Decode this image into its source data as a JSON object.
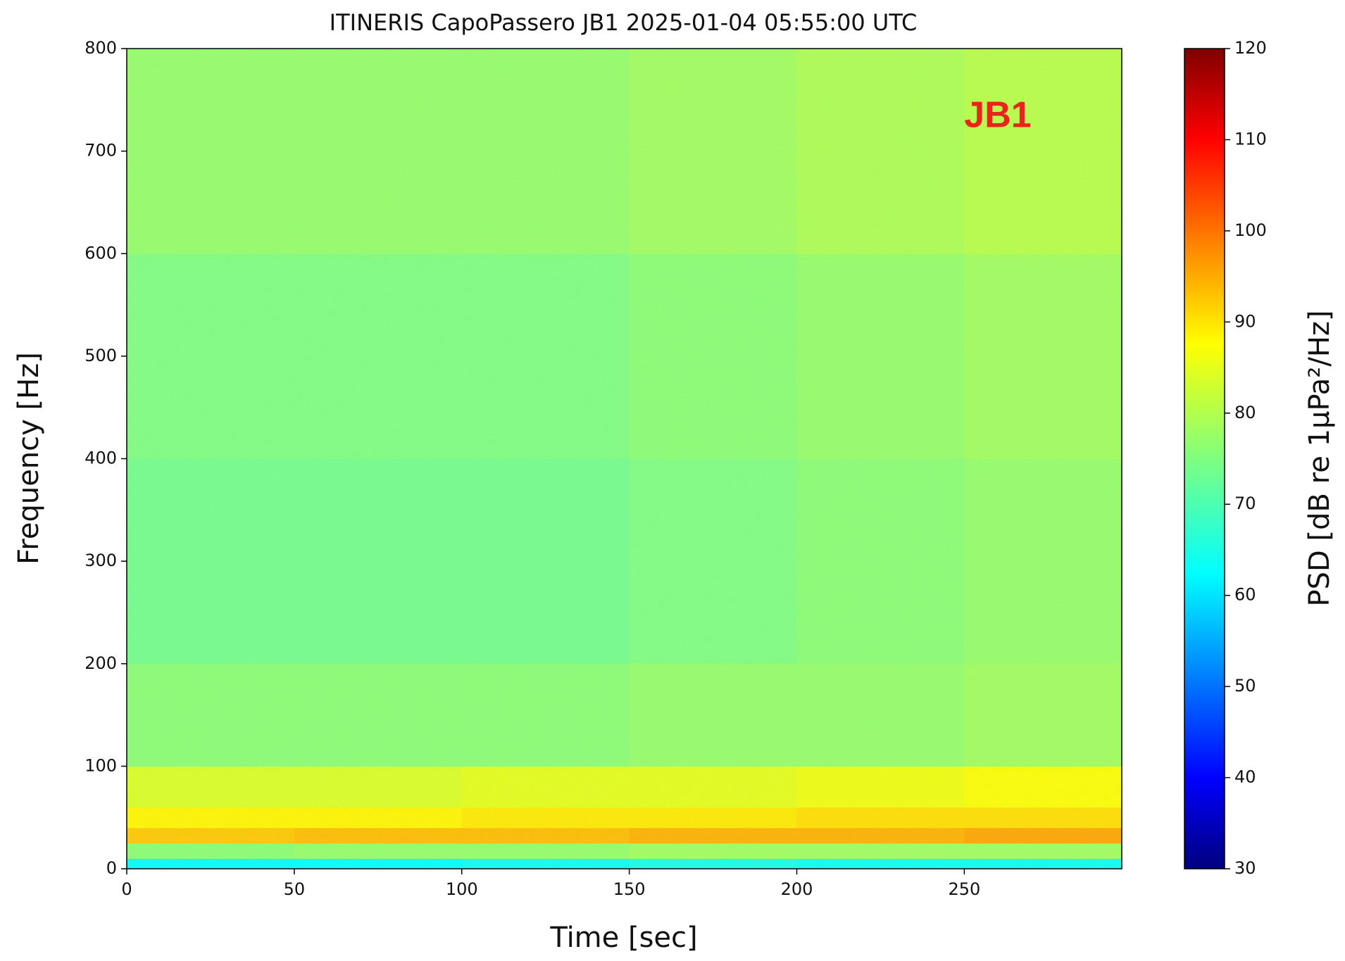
{
  "chart_data": {
    "type": "spectrogram",
    "title": "ITINERIS CapoPassero JB1 2025-01-04 05:55:00 UTC",
    "x_label": "Time [sec]",
    "y_label": "Frequency [Hz]",
    "colorbar_label": "PSD [dB re 1μPa²/Hz]",
    "annotation": "JB1",
    "colormap": "jet",
    "xbins": [
      0,
      50,
      100,
      150,
      200,
      250,
      297
    ],
    "ybins": [
      0,
      10,
      25,
      40,
      60,
      100,
      200,
      400,
      600,
      800
    ],
    "z": [
      [
        64,
        64,
        65,
        66,
        65,
        65
      ],
      [
        76,
        77,
        77,
        78,
        78,
        78
      ],
      [
        91,
        92,
        92,
        93,
        93,
        94
      ],
      [
        87,
        87,
        88,
        88,
        89,
        89
      ],
      [
        83,
        83,
        84,
        84,
        85,
        86
      ],
      [
        76,
        76,
        76,
        77,
        77,
        78
      ],
      [
        74,
        74,
        74,
        75,
        76,
        77
      ],
      [
        75,
        75,
        75,
        76,
        77,
        78
      ],
      [
        77,
        77,
        77,
        78,
        79,
        80
      ]
    ],
    "xlim": [
      0,
      297
    ],
    "ylim": [
      0,
      800
    ],
    "zlim": [
      30,
      120
    ],
    "xticks": [
      0,
      50,
      100,
      150,
      200,
      250
    ],
    "yticks": [
      0,
      100,
      200,
      300,
      400,
      500,
      600,
      700,
      800
    ],
    "zticks": [
      30,
      40,
      50,
      60,
      70,
      80,
      90,
      100,
      110,
      120
    ]
  }
}
